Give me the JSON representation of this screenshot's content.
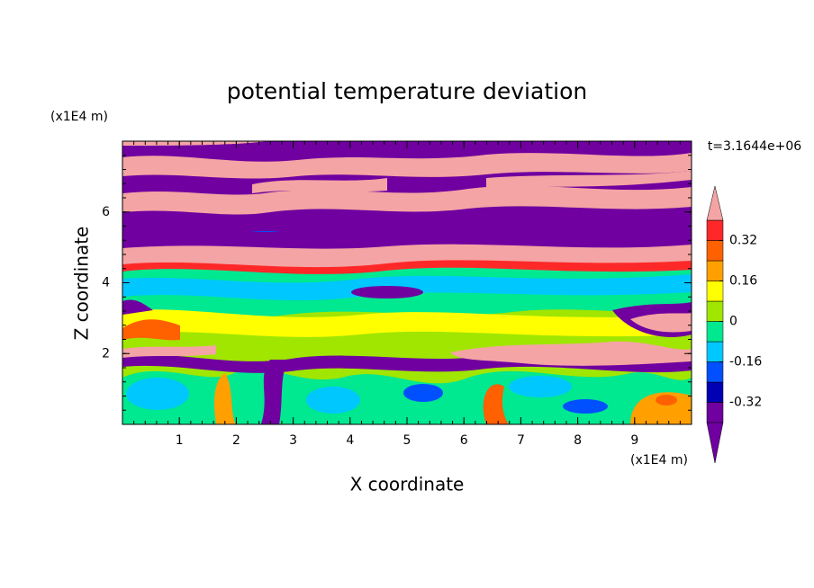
{
  "chart_data": {
    "type": "contour",
    "title": "potential temperature deviation",
    "x_label": "X coordinate",
    "y_label": "Z coordinate",
    "x_unit": "(x1E4 m)",
    "y_unit": "(x1E4 m)",
    "annotation": "t=3.1644e+06",
    "xlim": [
      0,
      10
    ],
    "ylim": [
      0,
      8
    ],
    "xticks": [
      1,
      2,
      3,
      4,
      5,
      6,
      7,
      8,
      9
    ],
    "yticks": [
      2,
      4,
      6
    ],
    "levels": [
      -0.4,
      -0.32,
      -0.24,
      -0.16,
      -0.08,
      0,
      0.08,
      0.16,
      0.24,
      0.32,
      0.4
    ],
    "colors": [
      "#7000a0",
      "#7000a0",
      "#0000b4",
      "#0050ff",
      "#00c8ff",
      "#00e890",
      "#a0e600",
      "#ffff00",
      "#ffa000",
      "#ff6000",
      "#ff2828",
      "#f4a4a4"
    ],
    "colorbar_ticks": [
      -0.32,
      -0.16,
      0,
      0.16,
      0.32
    ]
  }
}
